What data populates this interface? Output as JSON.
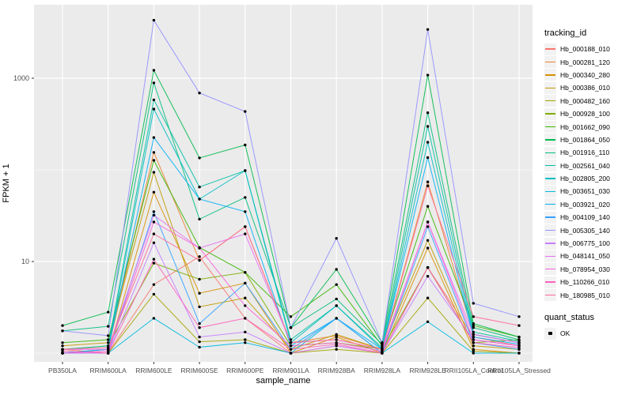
{
  "chart_data": {
    "type": "line",
    "title": "",
    "xlabel": "sample_name",
    "ylabel": "FPKM + 1",
    "y_scale": "log10",
    "ylim": [
      0.8,
      6300
    ],
    "y_ticks": [
      {
        "v": 10,
        "label": "10"
      },
      {
        "v": 1000,
        "label": "1000"
      }
    ],
    "y_minor": [
      1,
      100
    ],
    "grid": "on",
    "legend_position": "right",
    "panel_bg": "#EBEBEB",
    "grid_color": "#FFFFFF",
    "tick_label_color": "#4D4D4D",
    "point_color": "#000000",
    "categories": [
      "PB350LA",
      "RRIM600LA",
      "RRIM600LE",
      "RRIM600SE",
      "RRIM600PE",
      "RRIM901LA",
      "RRIM928BA",
      "RRIM928LA",
      "RRIM928LE",
      "RRII105LA_Control",
      "RRII105LA_Stressed"
    ],
    "series": [
      {
        "name": "Hb_000188_010",
        "color": "#F8766D",
        "values": [
          1.1,
          1.0,
          5.6,
          11.3,
          2.4,
          1.0,
          1.2,
          1.0,
          8.6,
          1.5,
          1.2
        ]
      },
      {
        "name": "Hb_000281_120",
        "color": "#EA8331",
        "values": [
          1.0,
          1.1,
          155,
          10.3,
          24,
          1.3,
          1.55,
          1.1,
          74,
          1.6,
          1.3
        ]
      },
      {
        "name": "Hb_000340_280",
        "color": "#D89000",
        "values": [
          1.0,
          1.0,
          57,
          4.5,
          5.8,
          1.0,
          1.5,
          1.0,
          14,
          1.1,
          1.0
        ]
      },
      {
        "name": "Hb_000386_010",
        "color": "#C09B00",
        "values": [
          1.2,
          1.3,
          94,
          3.2,
          4.0,
          1.1,
          1.6,
          1.1,
          17,
          1.2,
          1.1
        ]
      },
      {
        "name": "Hb_000482_160",
        "color": "#A3A500",
        "values": [
          1.0,
          1.0,
          4.4,
          1.33,
          1.4,
          1.0,
          1.1,
          1.0,
          4.0,
          1.05,
          1.0
        ]
      },
      {
        "name": "Hb_000928_100",
        "color": "#7CAE00",
        "values": [
          1.1,
          1.2,
          9.6,
          6.4,
          7.6,
          1.2,
          1.3,
          1.1,
          8.6,
          1.3,
          1.4
        ]
      },
      {
        "name": "Hb_001662_090",
        "color": "#39B600",
        "values": [
          1.3,
          1.4,
          127,
          14.2,
          7.6,
          2.5,
          5.6,
          1.2,
          40,
          2.0,
          1.5
        ]
      },
      {
        "name": "Hb_001864_050",
        "color": "#00BB4E",
        "values": [
          2.0,
          2.8,
          1220,
          135,
          187,
          1.9,
          8.2,
          1.3,
          1080,
          2.1,
          1.5
        ]
      },
      {
        "name": "Hb_001916_110",
        "color": "#00BF7D",
        "values": [
          1.75,
          1.96,
          890,
          29,
          50,
          1.9,
          3.9,
          1.25,
          420,
          1.9,
          1.4
        ]
      },
      {
        "name": "Hb_002561_040",
        "color": "#00C1A3",
        "values": [
          1.1,
          1.2,
          580,
          65,
          98,
          1.4,
          3.3,
          1.15,
          298,
          1.7,
          1.35
        ]
      },
      {
        "name": "Hb_002805_200",
        "color": "#00BFC4",
        "values": [
          1.0,
          1.1,
          460,
          48,
          98,
          1.3,
          3.3,
          1.1,
          200,
          1.6,
          1.3
        ]
      },
      {
        "name": "Hb_003651_030",
        "color": "#00BAE0",
        "values": [
          1.0,
          1.0,
          2.4,
          1.16,
          1.3,
          1.0,
          2.4,
          1.0,
          2.2,
          1.0,
          1.0
        ]
      },
      {
        "name": "Hb_003921_020",
        "color": "#00B0F6",
        "values": [
          1.0,
          1.1,
          225,
          48,
          35,
          1.2,
          2.4,
          1.1,
          136,
          1.5,
          1.25
        ]
      },
      {
        "name": "Hb_004109_140",
        "color": "#35A2FF",
        "values": [
          1.0,
          1.0,
          35,
          2.1,
          5.8,
          1.1,
          2.4,
          1.0,
          24,
          1.3,
          1.1
        ]
      },
      {
        "name": "Hb_005305_140",
        "color": "#9590FF",
        "values": [
          1.75,
          1.55,
          4290,
          690,
          434,
          1.9,
          17.9,
          1.3,
          3400,
          3.5,
          2.5
        ]
      },
      {
        "name": "Hb_006775_100",
        "color": "#C77CFF",
        "values": [
          1.0,
          1.0,
          16,
          1.5,
          1.7,
          1.0,
          1.2,
          1.0,
          6.9,
          1.4,
          1.2
        ]
      },
      {
        "name": "Hb_048141_050",
        "color": "#E76BF3",
        "values": [
          1.1,
          1.1,
          32,
          14,
          20,
          1.3,
          1.4,
          1.1,
          27,
          1.6,
          1.3
        ]
      },
      {
        "name": "Hb_078954_030",
        "color": "#FA62DB",
        "values": [
          1.0,
          1.05,
          27,
          14,
          3.3,
          1.2,
          1.3,
          1.05,
          27,
          1.4,
          1.2
        ]
      },
      {
        "name": "Hb_110266_010",
        "color": "#FF62BC",
        "values": [
          1.05,
          1.0,
          10.6,
          1.9,
          2.4,
          1.1,
          1.25,
          1.0,
          8.6,
          1.3,
          1.15
        ]
      },
      {
        "name": "Hb_180985_010",
        "color": "#FF6A98",
        "values": [
          1.1,
          1.15,
          20,
          10.3,
          24,
          1.3,
          1.4,
          1.1,
          67,
          2.5,
          2.0
        ]
      }
    ]
  },
  "legend": {
    "tracking_title": "tracking_id",
    "quant_title": "quant_status",
    "quant_items": [
      {
        "label": "OK"
      }
    ]
  }
}
